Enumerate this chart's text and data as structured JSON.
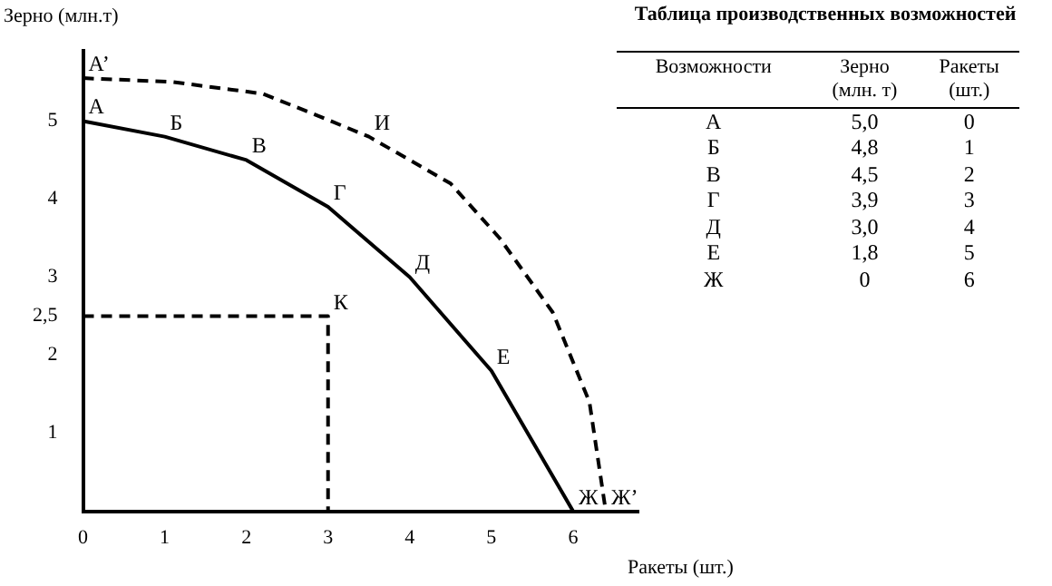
{
  "chart_data": {
    "type": "line",
    "title": "Таблица производственных возможностей",
    "xlabel": "Ракеты (шт.)",
    "ylabel": "Зерно (млн.т)",
    "xlim": [
      0,
      6.8
    ],
    "ylim": [
      0,
      5.9
    ],
    "xticks": [
      0,
      1,
      2,
      3,
      4,
      5,
      6
    ],
    "yticks": [
      1,
      2,
      {
        "value": 2.5,
        "label": "2,5"
      },
      3,
      4,
      5
    ],
    "grid": false,
    "legend": false,
    "marker": "none",
    "series": [
      {
        "color": "#000000",
        "line_style": "solid",
        "x": [
          0,
          1,
          2,
          3,
          4,
          5,
          6
        ],
        "values": [
          5,
          4.8,
          4.5,
          3.9,
          3,
          1.8,
          0
        ]
      },
      {
        "color": "#000000",
        "line_style": "dashed",
        "x": [
          0,
          1.1,
          2.2,
          2.8,
          3.5,
          4.5,
          5.1,
          5.75,
          6.2,
          6.4
        ],
        "values": [
          5.55,
          5.5,
          5.35,
          5.1,
          4.8,
          4.2,
          3.5,
          2.55,
          1.4,
          0
        ]
      },
      {
        "color": "#000000",
        "line_style": "dashed",
        "x": [
          0,
          3,
          3
        ],
        "values": [
          2.5,
          2.5,
          0
        ]
      }
    ],
    "annotations": [
      {
        "text": "А",
        "x": 0,
        "y": 5
      },
      {
        "text": "Б",
        "x": 1,
        "y": 4.8
      },
      {
        "text": "В",
        "x": 2,
        "y": 4.5
      },
      {
        "text": "Г",
        "x": 3,
        "y": 3.9
      },
      {
        "text": "Д",
        "x": 4,
        "y": 3
      },
      {
        "text": "Е",
        "x": 5,
        "y": 1.8
      },
      {
        "text": "Ж",
        "x": 6,
        "y": 0
      },
      {
        "text": "А’",
        "x": 0,
        "y": 5.55
      },
      {
        "text": "И",
        "x": 3.5,
        "y": 4.8
      },
      {
        "text": "Ж’",
        "x": 6.4,
        "y": 0
      },
      {
        "text": "К",
        "x": 3,
        "y": 2.5
      },
      "Возможности",
      "Зерно (млн. т)",
      "Ракеты (шт.)",
      "А",
      "5,0",
      "0",
      "Б",
      "4,8",
      "1",
      "В",
      "4,5",
      "2",
      "Г",
      "3,9",
      "3",
      "Д",
      "3,0",
      "4",
      "Е",
      "1,8",
      "5",
      "Ж",
      "0",
      "6"
    ]
  }
}
